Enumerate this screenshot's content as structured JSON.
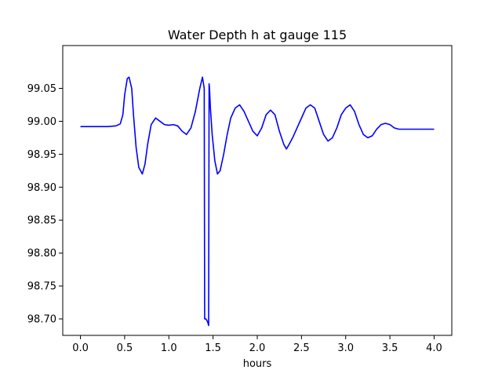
{
  "chart_data": {
    "type": "line",
    "title": "Water Depth h at gauge 115",
    "xlabel": "hours",
    "ylabel": "",
    "xlim": [
      -0.2,
      4.2
    ],
    "ylim": [
      98.675,
      99.115
    ],
    "xticks": [
      0.0,
      0.5,
      1.0,
      1.5,
      2.0,
      2.5,
      3.0,
      3.5,
      4.0
    ],
    "xtick_labels": [
      "0.0",
      "0.5",
      "1.0",
      "1.5",
      "2.0",
      "2.5",
      "3.0",
      "3.5",
      "4.0"
    ],
    "yticks": [
      98.7,
      98.75,
      98.8,
      98.85,
      98.9,
      98.95,
      99.0,
      99.05
    ],
    "ytick_labels": [
      "98.70",
      "98.75",
      "98.80",
      "98.85",
      "98.90",
      "98.95",
      "99.00",
      "99.05"
    ],
    "grid": false,
    "series": [
      {
        "color": "#0000ff",
        "x": [
          0.0,
          0.1,
          0.2,
          0.3,
          0.4,
          0.45,
          0.48,
          0.5,
          0.53,
          0.55,
          0.58,
          0.6,
          0.63,
          0.66,
          0.7,
          0.73,
          0.76,
          0.8,
          0.85,
          0.9,
          0.95,
          1.0,
          1.05,
          1.1,
          1.15,
          1.2,
          1.25,
          1.3,
          1.35,
          1.38,
          1.4,
          1.405,
          1.41,
          1.42,
          1.44,
          1.45,
          1.455,
          1.46,
          1.47,
          1.49,
          1.52,
          1.55,
          1.58,
          1.62,
          1.66,
          1.7,
          1.75,
          1.8,
          1.85,
          1.9,
          1.95,
          2.0,
          2.05,
          2.1,
          2.15,
          2.2,
          2.25,
          2.3,
          2.33,
          2.36,
          2.4,
          2.45,
          2.5,
          2.55,
          2.6,
          2.65,
          2.7,
          2.75,
          2.8,
          2.85,
          2.9,
          2.95,
          3.0,
          3.05,
          3.1,
          3.15,
          3.2,
          3.25,
          3.3,
          3.35,
          3.4,
          3.45,
          3.5,
          3.55,
          3.6,
          3.65,
          3.7,
          3.75,
          3.8,
          3.85,
          3.9,
          3.95,
          4.0
        ],
        "y": [
          98.992,
          98.992,
          98.992,
          98.992,
          98.993,
          98.996,
          99.01,
          99.04,
          99.065,
          99.067,
          99.05,
          99.01,
          98.96,
          98.93,
          98.92,
          98.935,
          98.965,
          98.995,
          99.005,
          99.0,
          98.995,
          98.994,
          98.995,
          98.993,
          98.985,
          98.98,
          98.99,
          99.015,
          99.05,
          99.067,
          99.05,
          98.7,
          98.7,
          98.7,
          98.695,
          98.69,
          99.057,
          99.05,
          99.02,
          98.98,
          98.94,
          98.92,
          98.925,
          98.95,
          98.98,
          99.005,
          99.02,
          99.025,
          99.015,
          99.0,
          98.985,
          98.978,
          98.99,
          99.01,
          99.017,
          99.01,
          98.985,
          98.965,
          98.958,
          98.965,
          98.975,
          98.99,
          99.005,
          99.02,
          99.025,
          99.02,
          99.0,
          98.98,
          98.97,
          98.975,
          98.99,
          99.01,
          99.02,
          99.025,
          99.015,
          98.995,
          98.98,
          98.975,
          98.978,
          98.988,
          98.995,
          98.997,
          98.995,
          98.99,
          98.988,
          98.988,
          98.988,
          98.988,
          98.988,
          98.988,
          98.988,
          98.988,
          98.988
        ]
      }
    ]
  }
}
